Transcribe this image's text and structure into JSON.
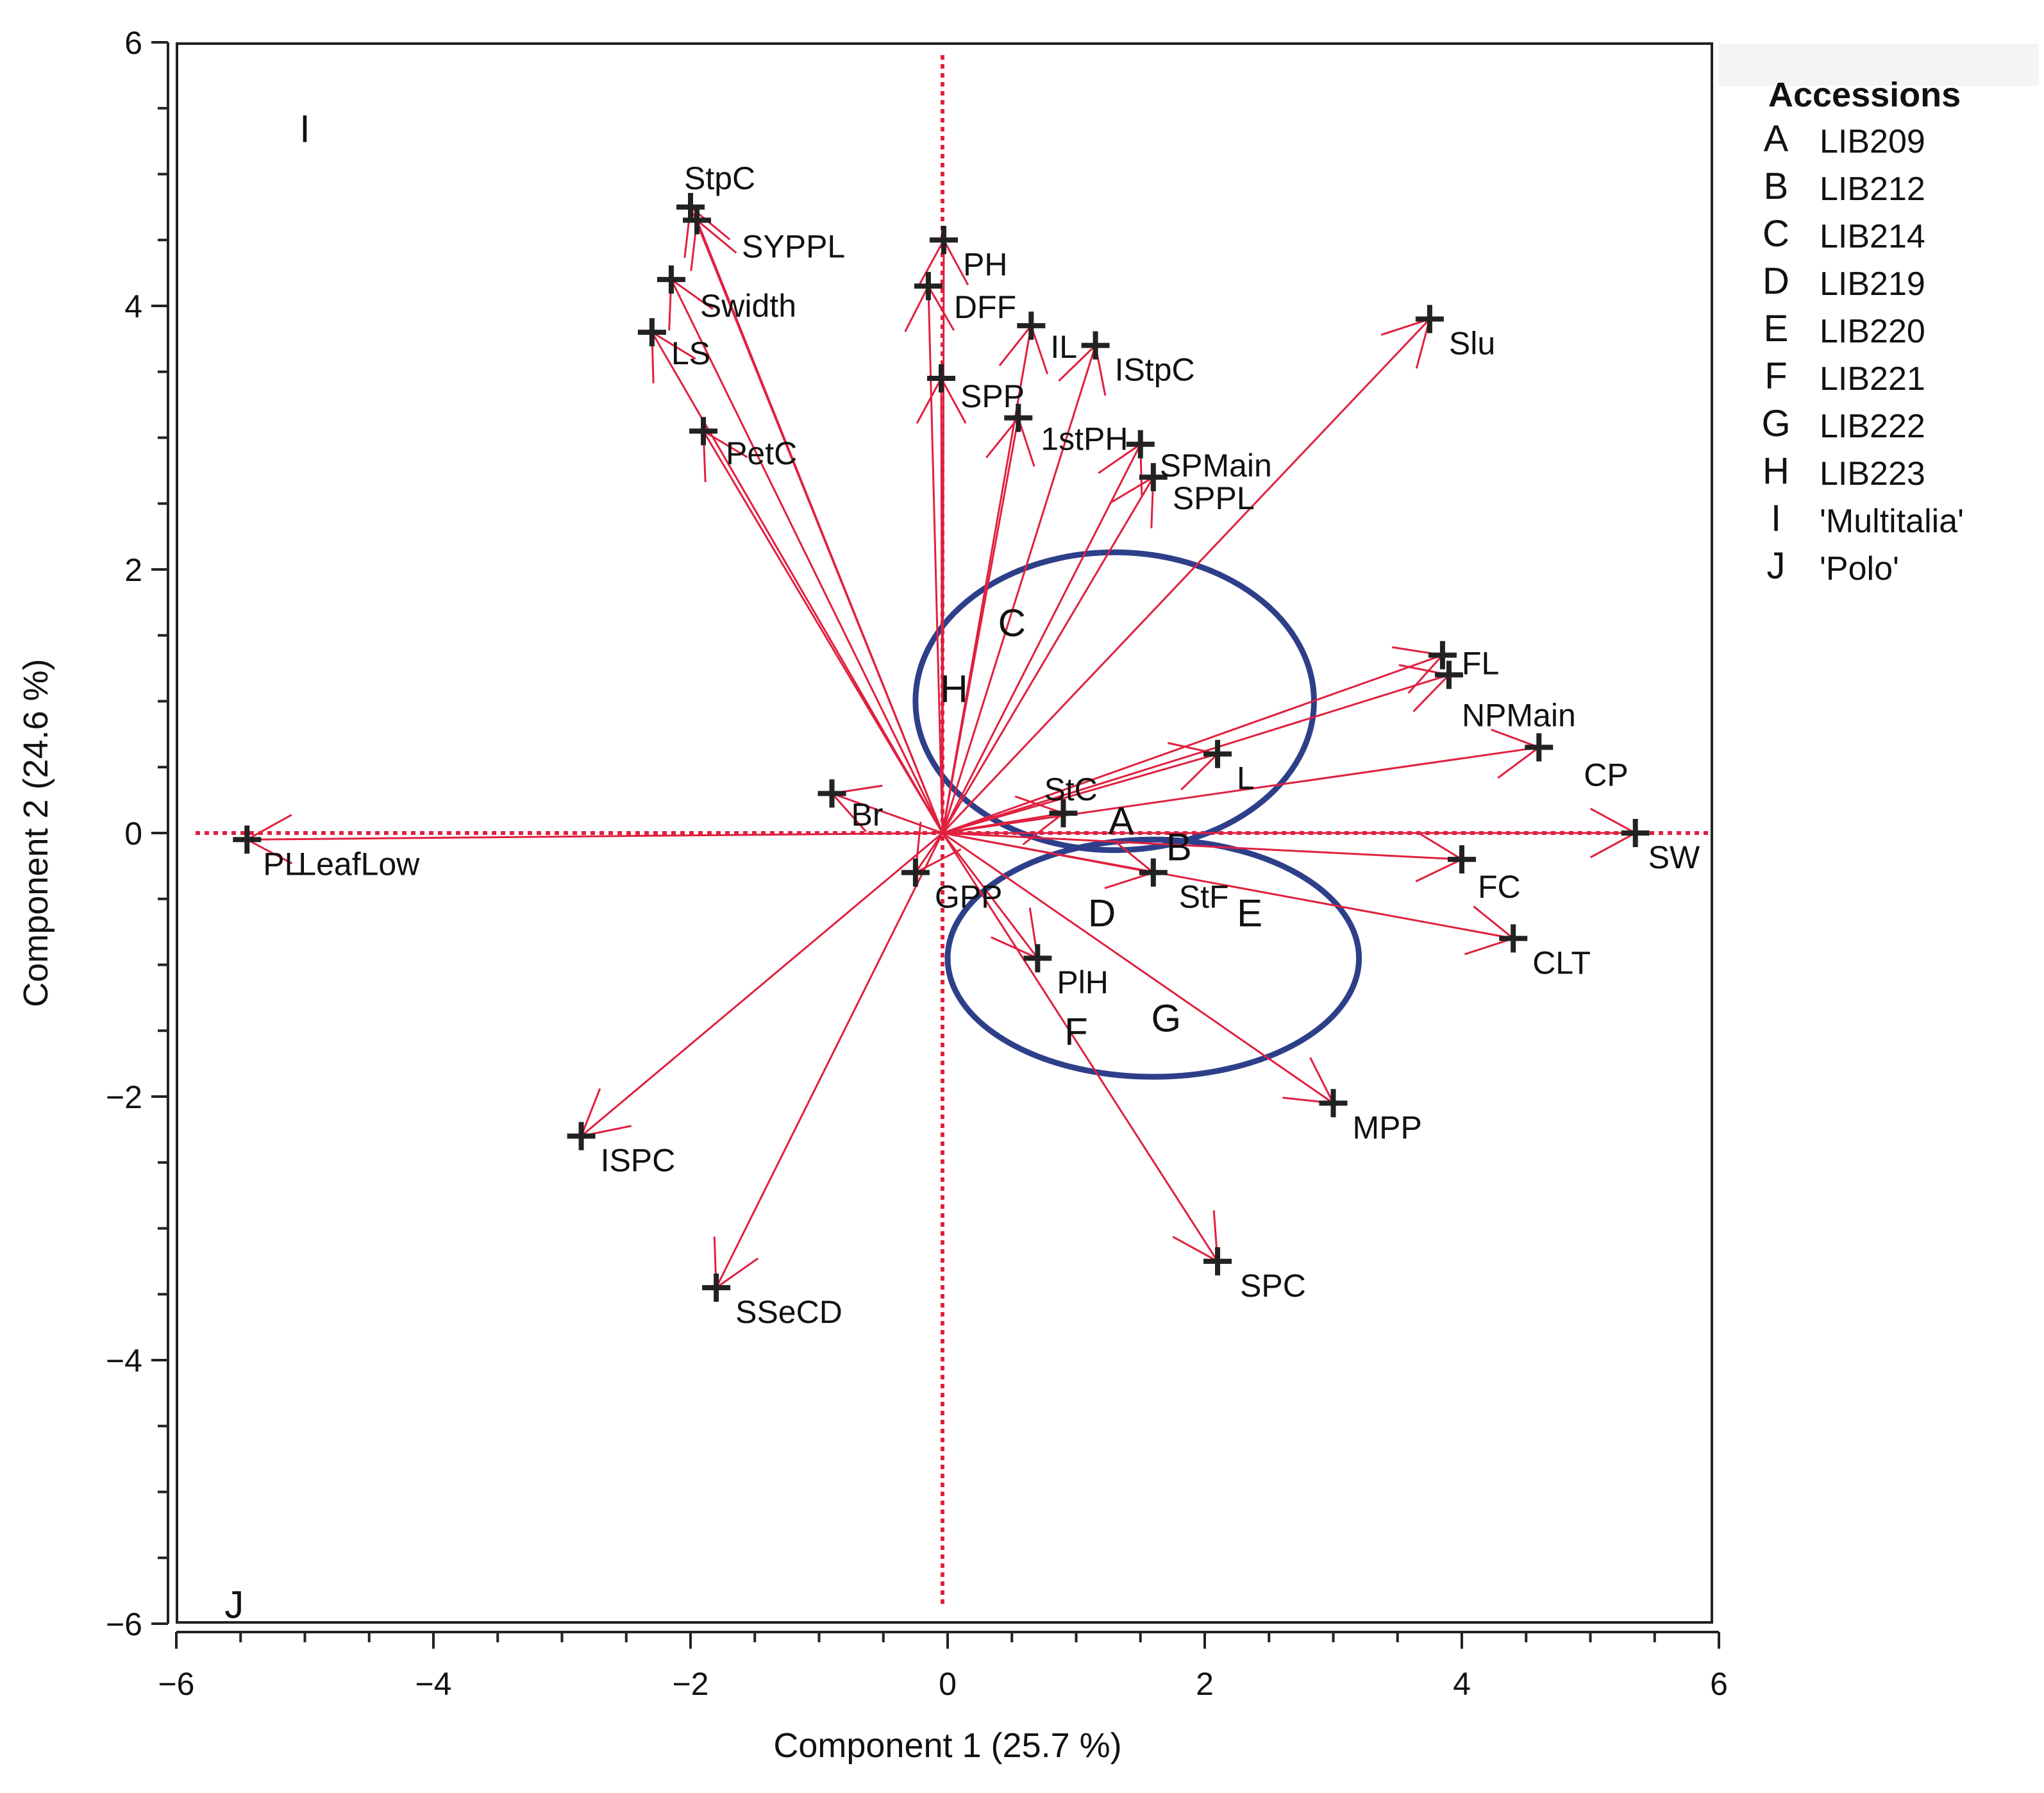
{
  "chart_data": {
    "type": "scatter",
    "subtype": "biplot",
    "title": "",
    "xlabel": "Component 1 (25.7 %)",
    "ylabel": "Component 2 (24.6 %)",
    "xlim": [
      -6,
      6
    ],
    "ylim": [
      -6,
      6
    ],
    "xticks": [
      -6,
      -4,
      -2,
      0,
      2,
      4,
      6
    ],
    "yticks": [
      -6,
      -4,
      -2,
      0,
      2,
      4,
      6
    ],
    "xtick_labels": [
      "−6",
      "−4",
      "−2",
      "0",
      "2",
      "4",
      "6"
    ],
    "ytick_labels": [
      "−6",
      "−4",
      "−2",
      "0",
      "2",
      "4",
      "6"
    ],
    "colors": {
      "vector": "#e0203f",
      "reference_line": "#e0203f",
      "ellipse": "#2e3f8a",
      "marker": "#222222",
      "text": "#111111"
    },
    "variables": [
      {
        "name": "StpC",
        "x": -2.0,
        "y": 4.75
      },
      {
        "name": "SYPPL",
        "x": -1.95,
        "y": 4.65
      },
      {
        "name": "Swidth",
        "x": -2.15,
        "y": 4.2
      },
      {
        "name": "LS",
        "x": -2.3,
        "y": 3.8
      },
      {
        "name": "PetC",
        "x": -1.9,
        "y": 3.05
      },
      {
        "name": "PH",
        "x": -0.03,
        "y": 4.5
      },
      {
        "name": "DFF",
        "x": -0.15,
        "y": 4.15
      },
      {
        "name": "IL",
        "x": 0.65,
        "y": 3.85
      },
      {
        "name": "IStpC",
        "x": 1.15,
        "y": 3.7
      },
      {
        "name": "SPP",
        "x": -0.05,
        "y": 3.45
      },
      {
        "name": "1stPH",
        "x": 0.55,
        "y": 3.15
      },
      {
        "name": "SPMain",
        "x": 1.5,
        "y": 2.95
      },
      {
        "name": "SPPL",
        "x": 1.6,
        "y": 2.7
      },
      {
        "name": "Slu",
        "x": 3.75,
        "y": 3.9
      },
      {
        "name": "FL",
        "x": 3.85,
        "y": 1.35
      },
      {
        "name": "NPMain",
        "x": 3.9,
        "y": 1.2
      },
      {
        "name": "CP",
        "x": 4.6,
        "y": 0.65
      },
      {
        "name": "L",
        "x": 2.1,
        "y": 0.6
      },
      {
        "name": "StC",
        "x": 0.9,
        "y": 0.15
      },
      {
        "name": "SW",
        "x": 5.35,
        "y": 0.0
      },
      {
        "name": "FC",
        "x": 4.0,
        "y": -0.2
      },
      {
        "name": "CLT",
        "x": 4.4,
        "y": -0.8
      },
      {
        "name": "StF",
        "x": 1.6,
        "y": -0.3
      },
      {
        "name": "Br",
        "x": -0.9,
        "y": 0.3
      },
      {
        "name": "GPP",
        "x": -0.25,
        "y": -0.3
      },
      {
        "name": "PlH",
        "x": 0.7,
        "y": -0.95
      },
      {
        "name": "MPP",
        "x": 3.0,
        "y": -2.05
      },
      {
        "name": "SPC",
        "x": 2.1,
        "y": -3.25
      },
      {
        "name": "ISPC",
        "x": -2.85,
        "y": -2.3
      },
      {
        "name": "SSeCD",
        "x": -1.8,
        "y": -3.45
      },
      {
        "name": "PL",
        "x": -5.45,
        "y": -0.05
      },
      {
        "name": "LeafLow",
        "x": -5.45,
        "y": -0.05
      }
    ],
    "accessions": [
      {
        "letter": "A",
        "x": 1.35,
        "y": 0.1
      },
      {
        "letter": "B",
        "x": 1.8,
        "y": -0.1
      },
      {
        "letter": "C",
        "x": 0.5,
        "y": 1.6
      },
      {
        "letter": "D",
        "x": 1.2,
        "y": -0.6
      },
      {
        "letter": "E",
        "x": 2.35,
        "y": -0.6
      },
      {
        "letter": "F",
        "x": 1.0,
        "y": -1.5
      },
      {
        "letter": "G",
        "x": 1.7,
        "y": -1.4
      },
      {
        "letter": "H",
        "x": 0.05,
        "y": 1.1
      },
      {
        "letter": "I",
        "x": -5.0,
        "y": 5.35
      },
      {
        "letter": "J",
        "x": -5.55,
        "y": -5.85
      }
    ],
    "ellipses": [
      {
        "cx": 1.3,
        "cy": 1.0,
        "rx": 1.55,
        "ry": 1.13
      },
      {
        "cx": 1.6,
        "cy": -0.95,
        "rx": 1.6,
        "ry": 0.9
      }
    ],
    "legend": {
      "title": "Accessions",
      "placement": "right",
      "entries": [
        {
          "letter": "A",
          "name": "LIB209"
        },
        {
          "letter": "B",
          "name": "LIB212"
        },
        {
          "letter": "C",
          "name": "LIB214"
        },
        {
          "letter": "D",
          "name": "LIB219"
        },
        {
          "letter": "E",
          "name": "LIB220"
        },
        {
          "letter": "F",
          "name": "LIB221"
        },
        {
          "letter": "G",
          "name": "LIB222"
        },
        {
          "letter": "H",
          "name": "LIB223"
        },
        {
          "letter": "I",
          "name": "'Multitalia'"
        },
        {
          "letter": "J",
          "name": "'Polo'"
        }
      ]
    }
  }
}
